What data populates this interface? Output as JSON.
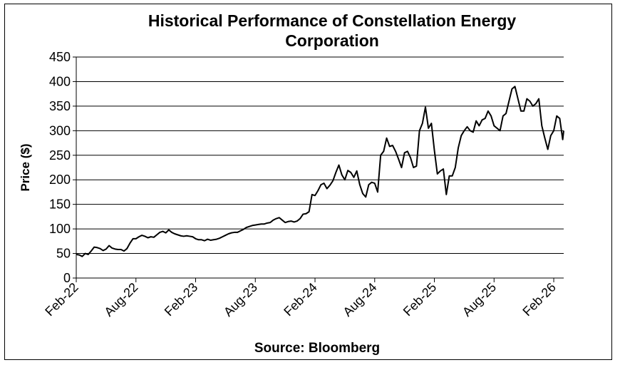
{
  "chart_data": {
    "type": "line",
    "title_lines": [
      "Historical Performance of Constellation Energy",
      "Corporation"
    ],
    "ylabel": "Price ($)",
    "xlabel": "Source: Bloomberg",
    "ylim": [
      0,
      450
    ],
    "yticks": [
      0,
      50,
      100,
      150,
      200,
      250,
      300,
      350,
      400,
      450
    ],
    "xlim": [
      0,
      49
    ],
    "xticks": [
      {
        "month": 0,
        "label": "Feb-22"
      },
      {
        "month": 6,
        "label": "Aug-22"
      },
      {
        "month": 12,
        "label": "Feb-23"
      },
      {
        "month": 18,
        "label": "Aug-23"
      },
      {
        "month": 24,
        "label": "Feb-24"
      },
      {
        "month": 30,
        "label": "Aug-24"
      },
      {
        "month": 36,
        "label": "Feb-25"
      },
      {
        "month": 42,
        "label": "Aug-25"
      },
      {
        "month": 48,
        "label": "Feb-26"
      }
    ],
    "grid": true,
    "series": [
      {
        "name": "Constellation Energy",
        "color": "#000000",
        "x": [
          0,
          0.3,
          0.6,
          0.9,
          1.2,
          1.5,
          1.8,
          2.1,
          2.4,
          2.7,
          3.0,
          3.3,
          3.6,
          3.9,
          4.2,
          4.5,
          4.8,
          5.1,
          5.4,
          5.7,
          6.0,
          6.3,
          6.6,
          6.9,
          7.2,
          7.5,
          7.8,
          8.1,
          8.4,
          8.7,
          9.0,
          9.3,
          9.6,
          9.9,
          10.2,
          10.5,
          10.8,
          11.1,
          11.4,
          11.7,
          12.0,
          12.3,
          12.6,
          12.9,
          13.2,
          13.5,
          13.8,
          14.1,
          14.4,
          14.7,
          15.0,
          15.3,
          15.6,
          15.9,
          16.2,
          16.5,
          16.8,
          17.1,
          17.4,
          17.7,
          18.0,
          18.3,
          18.6,
          18.9,
          19.2,
          19.5,
          19.8,
          20.1,
          20.4,
          20.7,
          21.0,
          21.3,
          21.6,
          21.9,
          22.2,
          22.5,
          22.8,
          23.1,
          23.4,
          23.7,
          24.0,
          24.3,
          24.6,
          24.9,
          25.2,
          25.5,
          25.8,
          26.1,
          26.4,
          26.7,
          27.0,
          27.3,
          27.6,
          27.9,
          28.2,
          28.5,
          28.8,
          29.1,
          29.4,
          29.7,
          30.0,
          30.3,
          30.6,
          30.9,
          31.2,
          31.5,
          31.8,
          32.1,
          32.4,
          32.7,
          33.0,
          33.3,
          33.6,
          33.9,
          34.2,
          34.5,
          34.8,
          35.1,
          35.4,
          35.7,
          36.0,
          36.3,
          36.6,
          36.9,
          37.2,
          37.5,
          37.8,
          38.1,
          38.4,
          38.7,
          39.0,
          39.3,
          39.6,
          39.9,
          40.2,
          40.5,
          40.8,
          41.1,
          41.4,
          41.7,
          42.0,
          42.3,
          42.6,
          42.9,
          43.2,
          43.5,
          43.8,
          44.1,
          44.4,
          44.7,
          45.0,
          45.3,
          45.6,
          45.9,
          46.2,
          46.5,
          46.8,
          47.1,
          47.4,
          47.7,
          48.0,
          48.3,
          48.6,
          48.9,
          49.0
        ],
        "values": [
          48,
          47,
          44,
          50,
          48,
          55,
          63,
          62,
          60,
          56,
          59,
          66,
          61,
          59,
          58,
          58,
          55,
          60,
          71,
          80,
          80,
          84,
          87,
          85,
          82,
          84,
          83,
          88,
          93,
          95,
          92,
          98,
          93,
          90,
          88,
          86,
          85,
          86,
          85,
          84,
          80,
          78,
          78,
          76,
          79,
          77,
          78,
          79,
          81,
          84,
          87,
          90,
          92,
          93,
          93,
          96,
          99,
          103,
          105,
          107,
          108,
          109,
          110,
          110,
          112,
          113,
          118,
          121,
          123,
          118,
          113,
          115,
          116,
          114,
          116,
          121,
          130,
          131,
          135,
          170,
          168,
          178,
          190,
          193,
          182,
          189,
          198,
          215,
          230,
          210,
          200,
          219,
          215,
          205,
          218,
          190,
          172,
          165,
          190,
          195,
          193,
          175,
          250,
          258,
          285,
          268,
          270,
          258,
          242,
          225,
          255,
          258,
          245,
          225,
          228,
          300,
          315,
          348,
          305,
          315,
          260,
          212,
          218,
          222,
          170,
          208,
          208,
          225,
          265,
          290,
          300,
          308,
          300,
          297,
          320,
          310,
          322,
          325,
          340,
          330,
          310,
          305,
          300,
          330,
          335,
          360,
          385,
          390,
          365,
          340,
          340,
          365,
          360,
          350,
          355,
          365,
          310,
          285,
          262,
          290,
          300,
          330,
          325,
          282,
          300
        ]
      }
    ]
  }
}
